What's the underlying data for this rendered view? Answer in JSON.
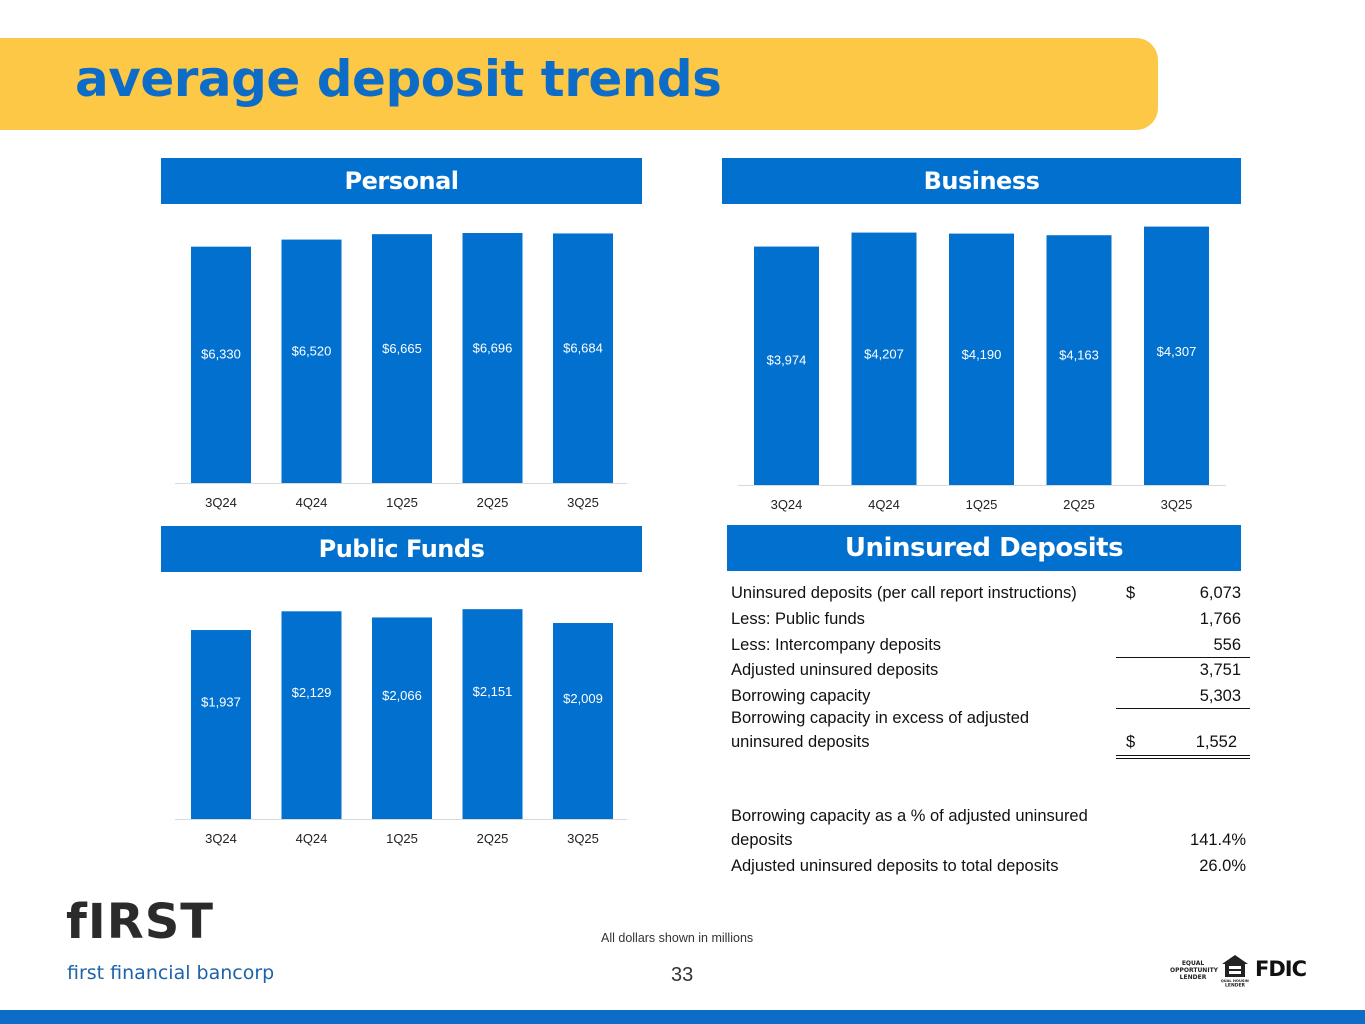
{
  "title": "average deposit trends",
  "brand": {
    "blue": "#0170ce",
    "yellow": "#fcc846"
  },
  "panels": {
    "personal": "Personal",
    "business": "Business",
    "public_funds": "Public Funds",
    "uninsured": "Uninsured Deposits"
  },
  "chart_data": [
    {
      "id": "personal",
      "type": "bar",
      "title": "Personal",
      "categories": [
        "3Q24",
        "4Q24",
        "1Q25",
        "2Q25",
        "3Q25"
      ],
      "values": [
        6330,
        6520,
        6665,
        6696,
        6684
      ],
      "data_labels": [
        "$6,330",
        "$6,520",
        "$6,665",
        "$6,696",
        "$6,684"
      ],
      "color": "#0170ce",
      "ylim": [
        0,
        7500
      ]
    },
    {
      "id": "business",
      "type": "bar",
      "title": "Business",
      "categories": [
        "3Q24",
        "4Q24",
        "1Q25",
        "2Q25",
        "3Q25"
      ],
      "values": [
        3974,
        4207,
        4190,
        4163,
        4307
      ],
      "data_labels": [
        "$3,974",
        "$4,207",
        "$4,190",
        "$4,163",
        "$4,307"
      ],
      "color": "#0170ce",
      "ylim": [
        0,
        4700
      ]
    },
    {
      "id": "public_funds",
      "type": "bar",
      "title": "Public Funds",
      "categories": [
        "3Q24",
        "4Q24",
        "1Q25",
        "2Q25",
        "3Q25"
      ],
      "values": [
        1937,
        2129,
        2066,
        2151,
        2009
      ],
      "data_labels": [
        "$1,937",
        "$2,129",
        "$2,066",
        "$2,151",
        "$2,009"
      ],
      "color": "#0170ce",
      "ylim": [
        0,
        2450
      ]
    }
  ],
  "uninsured_table": {
    "rows": [
      {
        "label": "Uninsured deposits (per call report instructions)",
        "currency": "$",
        "value": "6,073"
      },
      {
        "label": "Less: Public funds",
        "currency": "",
        "value": "1,766"
      },
      {
        "label": "Less: Intercompany deposits",
        "currency": "",
        "value": "556"
      },
      {
        "label": "Adjusted uninsured deposits",
        "currency": "",
        "value": "3,751"
      },
      {
        "label": "Borrowing capacity",
        "currency": "",
        "value": "5,303"
      },
      {
        "label_line1": "Borrowing capacity in excess of adjusted",
        "label_line2": "uninsured deposits",
        "currency": "$",
        "value": "1,552"
      }
    ],
    "ratios": [
      {
        "label_line1": "Borrowing capacity as a % of adjusted uninsured",
        "label_line2": "deposits",
        "value": "141.4%"
      },
      {
        "label": "Adjusted uninsured deposits to total deposits",
        "value": "26.0%"
      }
    ]
  },
  "footer": {
    "logo_word": "fIRST",
    "logo_sub": "first financial bancorp",
    "note": "All dollars shown in millions",
    "page": "33",
    "equal_opportunity": [
      "EQUAL",
      "OPPORTUNITY",
      "LENDER"
    ],
    "equal_housing": "EQUAL HOUSING LENDER",
    "fdic": "FDIC"
  }
}
